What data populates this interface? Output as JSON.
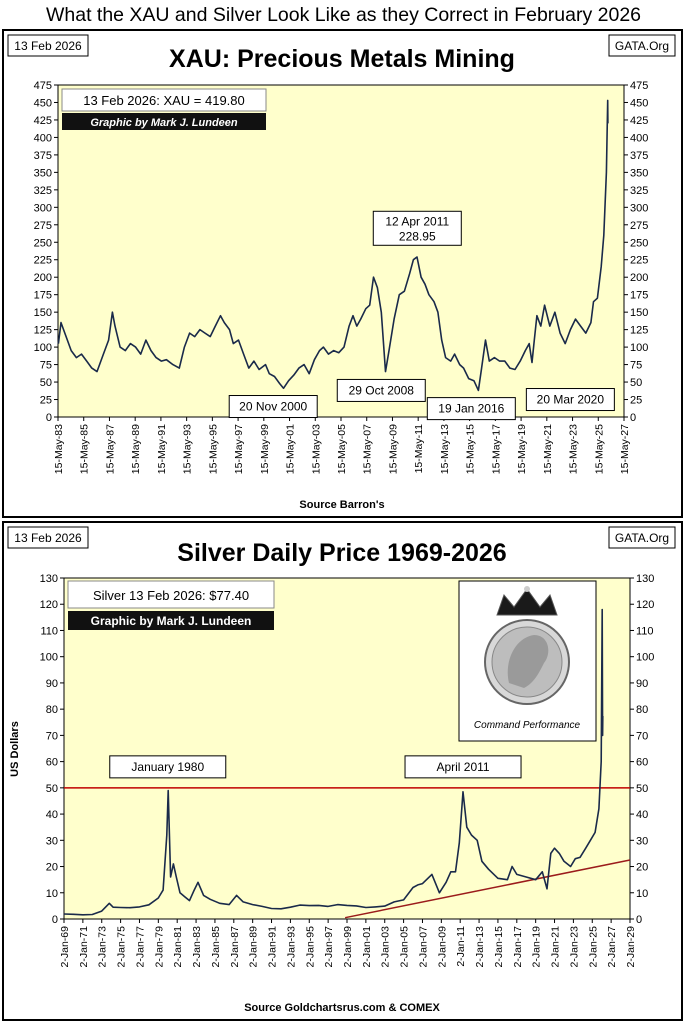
{
  "page": {
    "title": "What the XAU and Silver Look Like as they Correct in February 2026"
  },
  "colors": {
    "plot_bg": "#ffffcc",
    "line": "#1a2a4a",
    "ref_line": "#c00000",
    "trend_line": "#9b1b1b"
  },
  "chart_data": [
    {
      "type": "line",
      "title": "XAU: Precious Metals Mining",
      "date_label": "13 Feb 2026",
      "site_label": "GATA.Org",
      "source": "Source Barron's",
      "info_box": "13 Feb 2026: XAU = 419.80",
      "credit": "Graphic by Mark J. Lundeen",
      "ylim": [
        0,
        475
      ],
      "yticks": [
        0,
        25,
        50,
        75,
        100,
        125,
        150,
        175,
        200,
        225,
        250,
        275,
        300,
        325,
        350,
        375,
        400,
        425,
        450,
        475
      ],
      "xlim": [
        1983.37,
        2027.37
      ],
      "xtick_labels": [
        "15-May-83",
        "15-May-85",
        "15-May-87",
        "15-May-89",
        "15-May-91",
        "15-May-93",
        "15-May-95",
        "15-May-97",
        "15-May-99",
        "15-May-01",
        "15-May-03",
        "15-May-05",
        "15-May-07",
        "15-May-09",
        "15-May-11",
        "15-May-13",
        "15-May-15",
        "15-May-17",
        "15-May-19",
        "15-May-21",
        "15-May-23",
        "15-May-25",
        "15-May-27"
      ],
      "annotations": [
        {
          "text": "12 Apr 2011",
          "text2": "228.95",
          "x": 2011.28,
          "y": 228.95,
          "lx": 2011.3,
          "ly": 270
        },
        {
          "text": "20 Nov 2000",
          "x": 2000.89,
          "y": 41,
          "lx": 2000.1,
          "ly": 15
        },
        {
          "text": "29 Oct 2008",
          "x": 2008.83,
          "y": 65,
          "lx": 2008.5,
          "ly": 38
        },
        {
          "text": "19 Jan 2016",
          "x": 2016.05,
          "y": 38,
          "lx": 2015.5,
          "ly": 12
        },
        {
          "text": "20 Mar 2020",
          "x": 2020.22,
          "y": 78,
          "lx": 2023.2,
          "ly": 25
        }
      ],
      "series": [
        {
          "name": "XAU",
          "x": [
            1983.4,
            1983.6,
            1984.0,
            1984.4,
            1984.8,
            1985.2,
            1985.6,
            1986.0,
            1986.4,
            1986.9,
            1987.3,
            1987.6,
            1987.8,
            1988.2,
            1988.6,
            1989.0,
            1989.4,
            1989.8,
            1990.2,
            1990.6,
            1991.0,
            1991.4,
            1991.8,
            1992.3,
            1992.8,
            1993.2,
            1993.6,
            1994.0,
            1994.4,
            1994.8,
            1995.2,
            1995.6,
            1996.0,
            1996.3,
            1996.7,
            1997.0,
            1997.4,
            1997.8,
            1998.2,
            1998.6,
            1999.0,
            1999.5,
            1999.8,
            2000.2,
            2000.6,
            2000.9,
            2001.3,
            2001.7,
            2002.1,
            2002.5,
            2002.9,
            2003.3,
            2003.7,
            2004.0,
            2004.4,
            2004.8,
            2005.2,
            2005.6,
            2006.0,
            2006.3,
            2006.6,
            2006.9,
            2007.3,
            2007.6,
            2007.9,
            2008.2,
            2008.5,
            2008.83,
            2009.1,
            2009.5,
            2009.9,
            2010.3,
            2010.7,
            2011.0,
            2011.28,
            2011.6,
            2011.9,
            2012.2,
            2012.6,
            2012.9,
            2013.2,
            2013.5,
            2013.9,
            2014.2,
            2014.6,
            2014.9,
            2015.3,
            2015.7,
            2016.05,
            2016.3,
            2016.6,
            2016.9,
            2017.3,
            2017.7,
            2018.1,
            2018.5,
            2018.9,
            2019.3,
            2019.7,
            2020.0,
            2020.22,
            2020.4,
            2020.6,
            2020.9,
            2021.2,
            2021.6,
            2022.0,
            2022.4,
            2022.8,
            2023.2,
            2023.6,
            2024.0,
            2024.4,
            2024.8,
            2025.0,
            2025.3,
            2025.6,
            2025.8,
            2026.0,
            2026.1,
            2026.12
          ],
          "y": [
            105,
            135,
            115,
            95,
            85,
            90,
            80,
            70,
            65,
            90,
            110,
            150,
            130,
            100,
            95,
            105,
            100,
            90,
            110,
            95,
            85,
            80,
            82,
            75,
            70,
            100,
            120,
            115,
            125,
            120,
            115,
            130,
            145,
            135,
            125,
            105,
            110,
            90,
            70,
            80,
            68,
            75,
            62,
            58,
            48,
            41,
            52,
            60,
            70,
            75,
            62,
            82,
            95,
            100,
            90,
            95,
            92,
            100,
            130,
            145,
            130,
            140,
            155,
            160,
            200,
            185,
            150,
            65,
            95,
            140,
            175,
            180,
            205,
            225,
            228.95,
            200,
            190,
            175,
            165,
            150,
            110,
            85,
            80,
            90,
            75,
            70,
            55,
            52,
            38,
            70,
            110,
            80,
            85,
            80,
            80,
            70,
            68,
            80,
            95,
            105,
            78,
            110,
            145,
            130,
            160,
            130,
            150,
            120,
            105,
            125,
            140,
            130,
            120,
            135,
            165,
            170,
            215,
            260,
            350,
            453,
            420
          ]
        }
      ]
    },
    {
      "type": "line",
      "title": "Silver Daily Price 1969-2026",
      "date_label": "13 Feb 2026",
      "site_label": "GATA.Org",
      "source": "Source Goldchartsrus.com & COMEX",
      "ylabel": "US Dollars",
      "info_box": "Silver 13 Feb 2026: $77.40",
      "credit": "Graphic by Mark J. Lundeen",
      "logo_text": "Command Performance",
      "ylim": [
        0,
        130
      ],
      "yticks": [
        0,
        10,
        20,
        30,
        40,
        50,
        60,
        70,
        80,
        90,
        100,
        110,
        120,
        130
      ],
      "xlim": [
        1969.0,
        2029.0
      ],
      "xtick_labels": [
        "2-Jan-69",
        "2-Jan-71",
        "2-Jan-73",
        "2-Jan-75",
        "2-Jan-77",
        "2-Jan-79",
        "2-Jan-81",
        "2-Jan-83",
        "2-Jan-85",
        "2-Jan-87",
        "2-Jan-89",
        "2-Jan-91",
        "2-Jan-93",
        "2-Jan-95",
        "2-Jan-97",
        "2-Jan-99",
        "2-Jan-01",
        "2-Jan-03",
        "2-Jan-05",
        "2-Jan-07",
        "2-Jan-09",
        "2-Jan-11",
        "2-Jan-13",
        "2-Jan-15",
        "2-Jan-17",
        "2-Jan-19",
        "2-Jan-21",
        "2-Jan-23",
        "2-Jan-25",
        "2-Jan-27",
        "2-Jan-29"
      ],
      "hline": 50,
      "trendline": {
        "x": [
          1998.8,
          2029.0
        ],
        "y": [
          0.5,
          22.5
        ]
      },
      "annotations": [
        {
          "text": "January 1980",
          "x": 1980.05,
          "y": 49,
          "lx": 1980.0,
          "ly": 58
        },
        {
          "text": "April 2011",
          "x": 2011.3,
          "y": 48.5,
          "lx": 2011.3,
          "ly": 58
        }
      ],
      "series": [
        {
          "name": "Silver",
          "x": [
            1969.0,
            1970.0,
            1971.0,
            1972.0,
            1973.0,
            1973.8,
            1974.2,
            1975.0,
            1976.0,
            1977.0,
            1978.0,
            1979.0,
            1979.5,
            1979.9,
            1980.05,
            1980.3,
            1980.6,
            1980.9,
            1981.3,
            1981.8,
            1982.3,
            1982.8,
            1983.2,
            1983.8,
            1984.5,
            1985.5,
            1986.5,
            1987.3,
            1988.0,
            1989.0,
            1990.0,
            1991.0,
            1992.0,
            1993.0,
            1994.0,
            1995.0,
            1996.0,
            1997.0,
            1998.0,
            1999.0,
            2000.0,
            2001.0,
            2002.0,
            2003.0,
            2004.0,
            2005.0,
            2006.0,
            2006.5,
            2007.0,
            2008.0,
            2008.8,
            2009.5,
            2010.0,
            2010.5,
            2010.9,
            2011.3,
            2011.7,
            2012.2,
            2012.8,
            2013.3,
            2014.0,
            2015.0,
            2016.0,
            2016.5,
            2017.0,
            2018.0,
            2019.0,
            2019.7,
            2020.2,
            2020.6,
            2021.0,
            2021.5,
            2022.0,
            2022.7,
            2023.2,
            2023.7,
            2024.3,
            2024.8,
            2025.3,
            2025.7,
            2025.95,
            2026.05,
            2026.1,
            2026.12
          ],
          "y": [
            1.9,
            1.8,
            1.6,
            1.7,
            3.0,
            6.0,
            4.5,
            4.4,
            4.3,
            4.6,
            5.4,
            8.0,
            11.0,
            32.0,
            49.0,
            16.0,
            21.0,
            16.0,
            10.0,
            8.5,
            7.0,
            11.0,
            14.0,
            9.0,
            7.5,
            6.0,
            5.5,
            9.0,
            6.5,
            5.5,
            4.8,
            4.0,
            3.9,
            4.5,
            5.3,
            5.1,
            5.2,
            4.8,
            5.5,
            5.2,
            5.0,
            4.4,
            4.6,
            4.9,
            6.5,
            7.3,
            12.0,
            13.0,
            13.5,
            17.0,
            10.0,
            14.0,
            18.0,
            18.0,
            29.0,
            48.5,
            35.0,
            32.0,
            30.0,
            22.0,
            19.0,
            15.5,
            15.0,
            20.0,
            17.0,
            16.0,
            15.0,
            18.0,
            11.5,
            25.0,
            27.0,
            25.0,
            22.0,
            20.0,
            23.0,
            23.5,
            27.0,
            30.0,
            33.0,
            42.0,
            60.0,
            118.0,
            70.0,
            77.4
          ]
        }
      ]
    }
  ]
}
